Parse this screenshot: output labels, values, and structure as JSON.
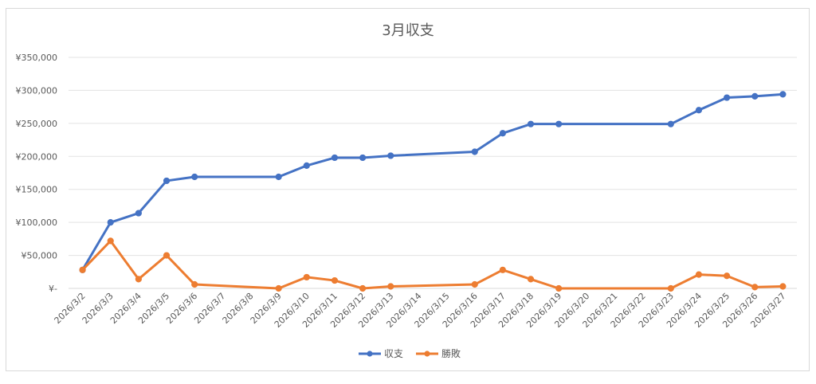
{
  "chart_data": {
    "type": "line",
    "title": "3月収支",
    "xlabel": "",
    "ylabel": "",
    "categories": [
      "2026/3/2",
      "2026/3/3",
      "2026/3/4",
      "2026/3/5",
      "2026/3/6",
      "2026/3/7",
      "2026/3/8",
      "2026/3/9",
      "2026/3/10",
      "2026/3/11",
      "2026/3/12",
      "2026/3/13",
      "2026/3/14",
      "2026/3/15",
      "2026/3/16",
      "2026/3/17",
      "2026/3/18",
      "2026/3/19",
      "2026/3/20",
      "2026/3/21",
      "2026/3/22",
      "2026/3/23",
      "2026/3/24",
      "2026/3/25",
      "2026/3/26",
      "2026/3/27"
    ],
    "y_tick_labels": [
      "¥-",
      "¥50,000",
      "¥100,000",
      "¥150,000",
      "¥200,000",
      "¥250,000",
      "¥300,000",
      "¥350,000"
    ],
    "ylim": [
      0,
      350000
    ],
    "grid": true,
    "legend_position": "bottom",
    "series": [
      {
        "name": "収支",
        "color": "#4472C4",
        "values": [
          28000,
          100000,
          114000,
          163000,
          169000,
          null,
          null,
          169000,
          186000,
          198000,
          198000,
          201000,
          null,
          null,
          207000,
          235000,
          249000,
          249000,
          null,
          null,
          null,
          249000,
          270000,
          289000,
          291000,
          294000
        ]
      },
      {
        "name": "勝敗",
        "color": "#ED7D31",
        "values": [
          28000,
          72000,
          14000,
          50000,
          6000,
          null,
          null,
          0,
          17000,
          12000,
          0,
          3000,
          null,
          null,
          6000,
          28000,
          14000,
          0,
          null,
          null,
          null,
          0,
          21000,
          19000,
          2000,
          3000
        ]
      }
    ]
  }
}
